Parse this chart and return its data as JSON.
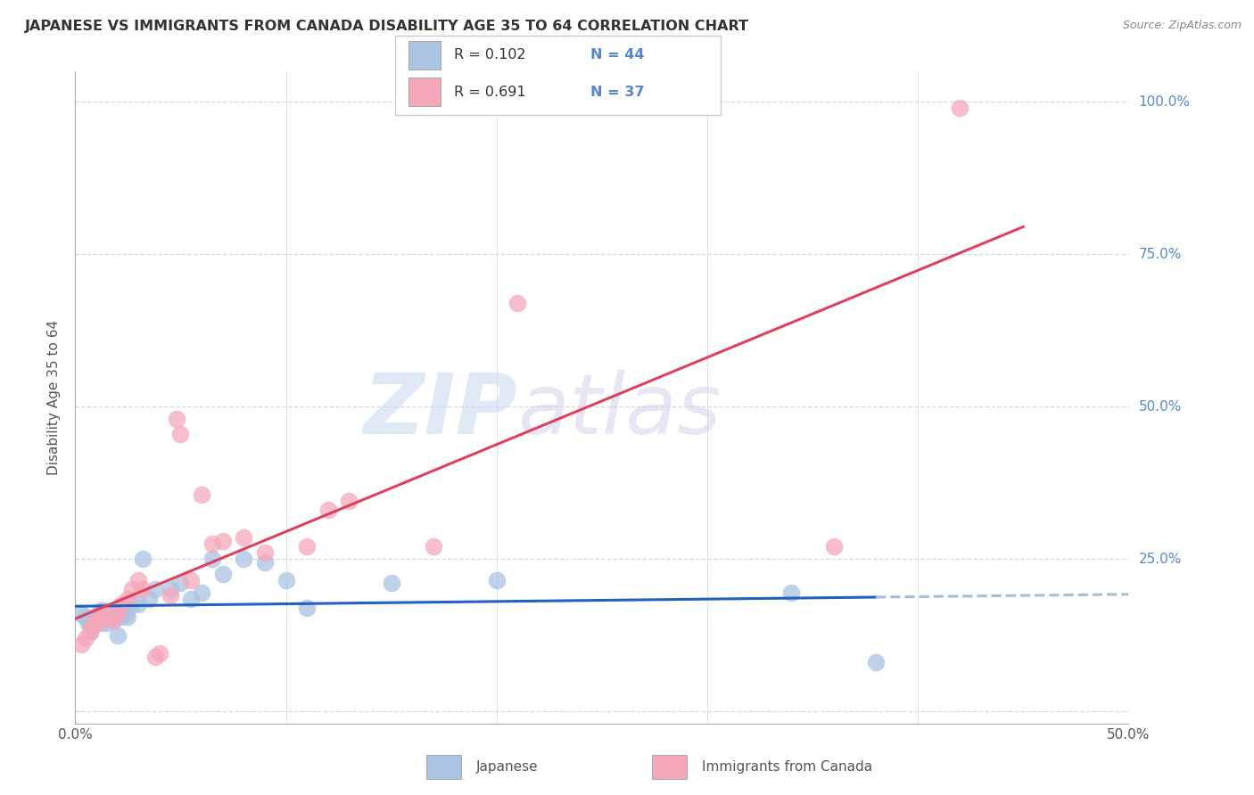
{
  "title": "JAPANESE VS IMMIGRANTS FROM CANADA DISABILITY AGE 35 TO 64 CORRELATION CHART",
  "source": "Source: ZipAtlas.com",
  "ylabel": "Disability Age 35 to 64",
  "xlim": [
    0.0,
    0.5
  ],
  "ylim": [
    -0.02,
    1.05
  ],
  "xticks": [
    0.0,
    0.1,
    0.2,
    0.3,
    0.4,
    0.5
  ],
  "xticklabels": [
    "0.0%",
    "",
    "",
    "",
    "",
    "50.0%"
  ],
  "yticks": [
    0.0,
    0.25,
    0.5,
    0.75,
    1.0
  ],
  "yticklabels_right": [
    "100.0%",
    "75.0%",
    "50.0%",
    "25.0%",
    ""
  ],
  "watermark": "ZIPatlas",
  "legend_r1": "R = 0.102",
  "legend_n1": "N = 44",
  "legend_r2": "R = 0.691",
  "legend_n2": "N = 37",
  "japanese_color": "#aac4e2",
  "canada_color": "#f5a8ba",
  "japanese_line_color": "#2060c0",
  "canada_line_color": "#e04060",
  "japanese_line_dash_color": "#aabbdd",
  "grid_color": "#d0d8e8",
  "background_color": "#ffffff",
  "right_axis_color": "#5588cc",
  "japanese_x": [
    0.003,
    0.005,
    0.006,
    0.007,
    0.008,
    0.009,
    0.01,
    0.011,
    0.012,
    0.012,
    0.013,
    0.013,
    0.014,
    0.015,
    0.015,
    0.016,
    0.017,
    0.018,
    0.019,
    0.02,
    0.021,
    0.022,
    0.023,
    0.024,
    0.025,
    0.027,
    0.03,
    0.032,
    0.035,
    0.038,
    0.045,
    0.05,
    0.055,
    0.06,
    0.065,
    0.07,
    0.08,
    0.09,
    0.1,
    0.11,
    0.15,
    0.2,
    0.34,
    0.38
  ],
  "japanese_y": [
    0.16,
    0.155,
    0.145,
    0.13,
    0.14,
    0.155,
    0.155,
    0.15,
    0.145,
    0.165,
    0.155,
    0.16,
    0.165,
    0.145,
    0.16,
    0.155,
    0.16,
    0.15,
    0.16,
    0.125,
    0.165,
    0.155,
    0.175,
    0.16,
    0.155,
    0.175,
    0.175,
    0.25,
    0.185,
    0.2,
    0.2,
    0.21,
    0.185,
    0.195,
    0.25,
    0.225,
    0.25,
    0.245,
    0.215,
    0.17,
    0.21,
    0.215,
    0.195,
    0.08
  ],
  "canada_x": [
    0.003,
    0.005,
    0.007,
    0.008,
    0.009,
    0.01,
    0.011,
    0.012,
    0.013,
    0.014,
    0.015,
    0.016,
    0.018,
    0.02,
    0.022,
    0.025,
    0.027,
    0.03,
    0.032,
    0.038,
    0.04,
    0.045,
    0.048,
    0.05,
    0.055,
    0.06,
    0.065,
    0.07,
    0.08,
    0.09,
    0.11,
    0.12,
    0.13,
    0.17,
    0.21,
    0.36,
    0.42
  ],
  "canada_y": [
    0.11,
    0.12,
    0.13,
    0.14,
    0.145,
    0.145,
    0.15,
    0.155,
    0.16,
    0.16,
    0.155,
    0.155,
    0.15,
    0.16,
    0.175,
    0.185,
    0.2,
    0.215,
    0.2,
    0.09,
    0.095,
    0.19,
    0.48,
    0.455,
    0.215,
    0.355,
    0.275,
    0.28,
    0.285,
    0.26,
    0.27,
    0.33,
    0.345,
    0.27,
    0.67,
    0.27,
    0.99
  ]
}
